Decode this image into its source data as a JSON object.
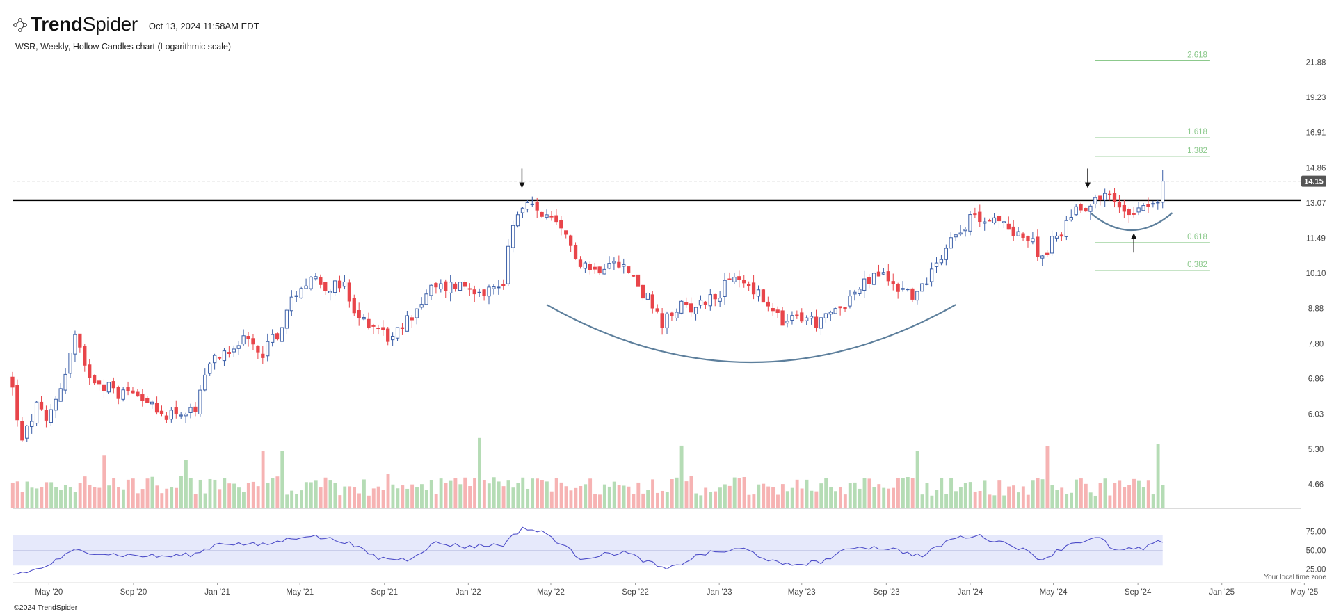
{
  "header": {
    "brand": "TrendSpider",
    "timestamp": "Oct 13, 2024 11:58AM EDT",
    "subtitle": "WSR, Weekly, Hollow Candles chart (Logarithmic scale)"
  },
  "footer": {
    "copyright": "©2024 TrendSpider",
    "timezone_note": "Your local time zone"
  },
  "colors": {
    "up": "#3b5fa8",
    "down": "#e8454a",
    "vol_up": "#b5dcb5",
    "vol_down": "#f6b3b3",
    "rsi_line": "#4c4cc8",
    "rsi_band": "#e6e9fb",
    "fib": "#8cc98c",
    "arc": "#5d7f9c"
  },
  "chart_data": {
    "type": "candlestick",
    "ticker": "WSR",
    "interval": "Weekly",
    "scale": "log",
    "price_axis": {
      "ylim": [
        4.3,
        23.0
      ],
      "ticks": [
        21.88,
        19.23,
        16.91,
        14.86,
        13.07,
        11.49,
        10.1,
        8.88,
        7.8,
        6.86,
        6.03,
        5.3,
        4.66
      ]
    },
    "last_price": 14.15,
    "time_axis": {
      "xlim": [
        "2020-03-09",
        "2025-05-31"
      ],
      "ticks": [
        {
          "label": "May '20",
          "date": "2020-05-01"
        },
        {
          "label": "Sep '20",
          "date": "2020-09-01"
        },
        {
          "label": "Jan '21",
          "date": "2021-01-01"
        },
        {
          "label": "May '21",
          "date": "2021-05-01"
        },
        {
          "label": "Sep '21",
          "date": "2021-09-01"
        },
        {
          "label": "Jan '22",
          "date": "2022-01-01"
        },
        {
          "label": "May '22",
          "date": "2022-05-01"
        },
        {
          "label": "Sep '22",
          "date": "2022-09-01"
        },
        {
          "label": "Jan '23",
          "date": "2023-01-01"
        },
        {
          "label": "May '23",
          "date": "2023-05-01"
        },
        {
          "label": "Sep '23",
          "date": "2023-09-01"
        },
        {
          "label": "Jan '24",
          "date": "2024-01-01"
        },
        {
          "label": "May '24",
          "date": "2024-05-01"
        },
        {
          "label": "Sep '24",
          "date": "2024-09-01"
        },
        {
          "label": "Jan '25",
          "date": "2025-01-01"
        },
        {
          "label": "May '25",
          "date": "2025-05-01"
        }
      ]
    },
    "resistance_level": 13.2,
    "fib_levels": [
      {
        "label": "2.618",
        "price": 22.0
      },
      {
        "label": "1.618",
        "price": 16.6
      },
      {
        "label": "1.382",
        "price": 15.5
      },
      {
        "label": "0.618",
        "price": 11.3
      },
      {
        "label": "0.382",
        "price": 10.2
      }
    ],
    "annotations": {
      "down_arrows": [
        {
          "date": "2022-03-20",
          "price": 13.8
        },
        {
          "date": "2024-06-20",
          "price": 13.8
        }
      ],
      "up_arrows": [
        {
          "date": "2024-08-26",
          "price": 11.7
        }
      ]
    },
    "rsi": {
      "ticks": [
        75.0,
        50.0,
        25.0
      ],
      "band": [
        30,
        70
      ]
    },
    "price_anchors": [
      [
        "2020-03-09",
        6.6
      ],
      [
        "2020-03-23",
        5.4
      ],
      [
        "2020-04-13",
        6.2
      ],
      [
        "2020-04-27",
        5.8
      ],
      [
        "2020-05-25",
        7.0
      ],
      [
        "2020-06-08",
        8.0
      ],
      [
        "2020-06-22",
        7.1
      ],
      [
        "2020-07-13",
        6.8
      ],
      [
        "2020-08-10",
        6.5
      ],
      [
        "2020-09-07",
        6.6
      ],
      [
        "2020-10-05",
        6.0
      ],
      [
        "2020-11-02",
        6.1
      ],
      [
        "2020-11-30",
        6.0
      ],
      [
        "2020-12-07",
        6.5
      ],
      [
        "2020-12-28",
        7.4
      ],
      [
        "2021-02-01",
        7.9
      ],
      [
        "2021-03-08",
        7.6
      ],
      [
        "2021-04-05",
        8.3
      ],
      [
        "2021-04-26",
        9.5
      ],
      [
        "2021-05-17",
        10.0
      ],
      [
        "2021-06-14",
        9.6
      ],
      [
        "2021-07-05",
        9.6
      ],
      [
        "2021-07-19",
        8.6
      ],
      [
        "2021-08-16",
        8.4
      ],
      [
        "2021-09-13",
        7.9
      ],
      [
        "2021-10-11",
        8.7
      ],
      [
        "2021-11-08",
        9.5
      ],
      [
        "2021-12-13",
        9.7
      ],
      [
        "2022-01-10",
        9.6
      ],
      [
        "2022-02-07",
        9.5
      ],
      [
        "2022-02-21",
        9.8
      ],
      [
        "2022-03-07",
        12.3
      ],
      [
        "2022-03-28",
        12.9
      ],
      [
        "2022-04-18",
        12.6
      ],
      [
        "2022-05-16",
        11.7
      ],
      [
        "2022-06-13",
        10.6
      ],
      [
        "2022-07-04",
        10.2
      ],
      [
        "2022-08-01",
        10.8
      ],
      [
        "2022-08-22",
        10.1
      ],
      [
        "2022-09-19",
        9.2
      ],
      [
        "2022-10-10",
        8.3
      ],
      [
        "2022-10-31",
        8.9
      ],
      [
        "2022-11-28",
        9.0
      ],
      [
        "2022-12-26",
        9.3
      ],
      [
        "2023-01-23",
        9.9
      ],
      [
        "2023-02-13",
        9.7
      ],
      [
        "2023-03-13",
        8.9
      ],
      [
        "2023-04-03",
        8.4
      ],
      [
        "2023-05-01",
        8.6
      ],
      [
        "2023-05-29",
        8.4
      ],
      [
        "2023-06-19",
        8.8
      ],
      [
        "2023-07-17",
        9.4
      ],
      [
        "2023-08-21",
        10.1
      ],
      [
        "2023-09-18",
        9.6
      ],
      [
        "2023-10-16",
        9.3
      ],
      [
        "2023-11-06",
        10.2
      ],
      [
        "2023-11-27",
        11.2
      ],
      [
        "2023-12-18",
        12.0
      ],
      [
        "2024-01-15",
        12.5
      ],
      [
        "2024-02-12",
        12.1
      ],
      [
        "2024-03-11",
        11.8
      ],
      [
        "2024-04-15",
        10.8
      ],
      [
        "2024-05-13",
        11.8
      ],
      [
        "2024-06-03",
        12.9
      ],
      [
        "2024-06-24",
        13.0
      ],
      [
        "2024-07-15",
        13.6
      ],
      [
        "2024-07-29",
        13.0
      ],
      [
        "2024-08-19",
        12.7
      ],
      [
        "2024-09-09",
        13.1
      ],
      [
        "2024-09-30",
        13.0
      ],
      [
        "2024-10-07",
        14.15
      ]
    ],
    "rsi_anchors": [
      [
        "2020-03-09",
        18
      ],
      [
        "2020-04-20",
        26
      ],
      [
        "2020-06-08",
        50
      ],
      [
        "2020-08-10",
        44
      ],
      [
        "2020-10-19",
        42
      ],
      [
        "2020-11-30",
        45
      ],
      [
        "2021-01-04",
        60
      ],
      [
        "2021-03-08",
        57
      ],
      [
        "2021-05-10",
        70
      ],
      [
        "2021-07-05",
        62
      ],
      [
        "2021-08-23",
        40
      ],
      [
        "2021-10-04",
        38
      ],
      [
        "2021-11-15",
        60
      ],
      [
        "2021-12-27",
        55
      ],
      [
        "2022-02-21",
        58
      ],
      [
        "2022-03-21",
        80
      ],
      [
        "2022-04-25",
        72
      ],
      [
        "2022-06-13",
        40
      ],
      [
        "2022-08-15",
        48
      ],
      [
        "2022-10-17",
        24
      ],
      [
        "2022-12-05",
        45
      ],
      [
        "2023-02-06",
        52
      ],
      [
        "2023-04-03",
        30
      ],
      [
        "2023-05-29",
        35
      ],
      [
        "2023-07-17",
        55
      ],
      [
        "2023-09-04",
        53
      ],
      [
        "2023-10-23",
        42
      ],
      [
        "2023-12-04",
        65
      ],
      [
        "2024-01-08",
        70
      ],
      [
        "2024-03-04",
        57
      ],
      [
        "2024-04-15",
        38
      ],
      [
        "2024-05-27",
        60
      ],
      [
        "2024-07-08",
        66
      ],
      [
        "2024-07-29",
        50
      ],
      [
        "2024-09-09",
        52
      ],
      [
        "2024-10-07",
        63
      ]
    ]
  }
}
